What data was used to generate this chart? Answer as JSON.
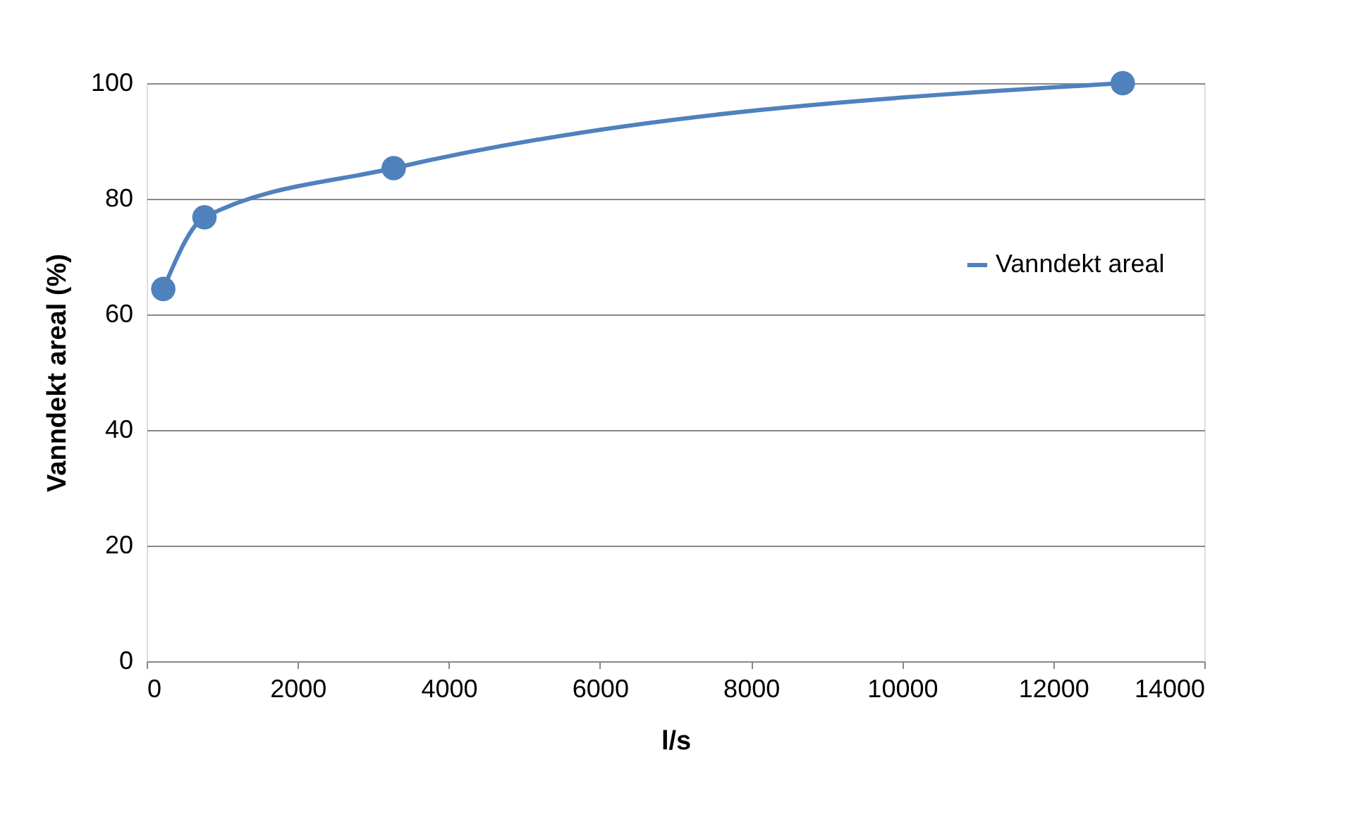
{
  "chart_data": {
    "type": "line",
    "xlabel": "l/s",
    "ylabel": "Vanndekt areal (%)",
    "x": [
      220,
      765,
      3270,
      12920
    ],
    "series": [
      {
        "name": "Vanndekt areal",
        "color": "#4f81bd",
        "values": [
          64.4,
          76.8,
          85.3,
          100
        ]
      }
    ],
    "xlim": [
      0,
      14000
    ],
    "xticks": [
      0,
      2000,
      4000,
      6000,
      8000,
      10000,
      12000,
      14000
    ],
    "ylim": [
      0,
      100
    ],
    "yticks": [
      0,
      20,
      40,
      60,
      80,
      100
    ],
    "grid": "y",
    "legend": "right",
    "marker": "circle",
    "line_style": "solid"
  }
}
